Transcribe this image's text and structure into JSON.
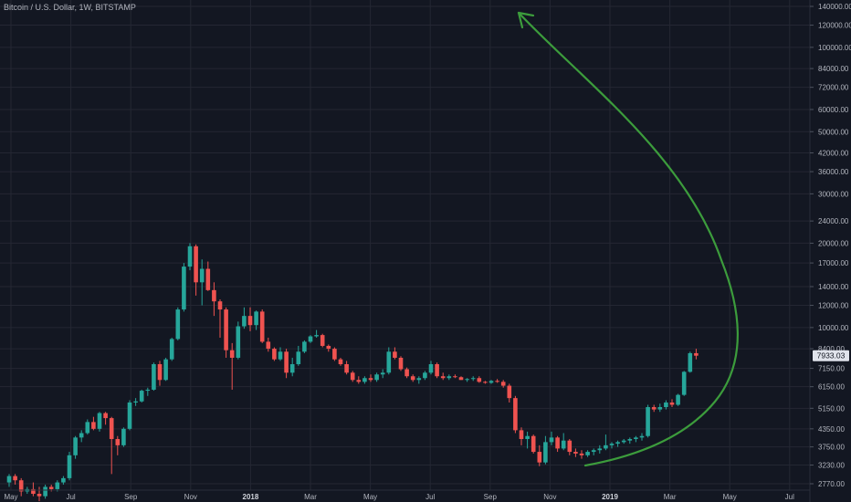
{
  "header": {
    "title": "Bitcoin / U.S. Dollar, 1W, BITSTAMP"
  },
  "colors": {
    "background": "#131722",
    "grid": "#242733",
    "up": "#26a69a",
    "down": "#ef5350",
    "arrow": "#3c9c3c",
    "axis_text": "#b2b5be"
  },
  "chart_data": {
    "type": "candlestick",
    "title": "Bitcoin / U.S. Dollar, 1W, BITSTAMP",
    "scale": "log",
    "ylim": [
      2600,
      150000
    ],
    "y_ticks": [
      "140000.00",
      "120000.00",
      "100000.00",
      "84000.00",
      "72000.00",
      "60000.00",
      "50000.00",
      "42000.00",
      "36000.00",
      "30000.00",
      "24000.00",
      "20000.00",
      "17000.00",
      "14000.00",
      "12000.00",
      "10000.00",
      "8400.00",
      "7150.00",
      "6150.00",
      "5150.00",
      "4350.00",
      "3750.00",
      "3230.00",
      "2770.00"
    ],
    "x_ticks": [
      {
        "label": "May",
        "bold": false
      },
      {
        "label": "Jul",
        "bold": false
      },
      {
        "label": "Sep",
        "bold": false
      },
      {
        "label": "Nov",
        "bold": false
      },
      {
        "label": "2018",
        "bold": true
      },
      {
        "label": "Mar",
        "bold": false
      },
      {
        "label": "May",
        "bold": false
      },
      {
        "label": "Jul",
        "bold": false
      },
      {
        "label": "Sep",
        "bold": false
      },
      {
        "label": "Nov",
        "bold": false
      },
      {
        "label": "2019",
        "bold": true
      },
      {
        "label": "Mar",
        "bold": false
      },
      {
        "label": "May",
        "bold": false
      },
      {
        "label": "Jul",
        "bold": false
      }
    ],
    "last_price": "7933.03",
    "grid": true,
    "candles": [
      [
        2800,
        3000,
        2700,
        2950
      ],
      [
        2950,
        3000,
        2750,
        2850
      ],
      [
        2850,
        2900,
        2500,
        2600
      ],
      [
        2600,
        2700,
        2550,
        2650
      ],
      [
        2650,
        2800,
        2500,
        2550
      ],
      [
        2550,
        2700,
        2400,
        2500
      ],
      [
        2500,
        2750,
        2450,
        2700
      ],
      [
        2700,
        2750,
        2600,
        2650
      ],
      [
        2650,
        2850,
        2600,
        2800
      ],
      [
        2800,
        2950,
        2750,
        2900
      ],
      [
        2900,
        3600,
        2850,
        3500
      ],
      [
        3500,
        4100,
        3400,
        4050
      ],
      [
        4050,
        4300,
        3900,
        4200
      ],
      [
        4200,
        4700,
        4150,
        4600
      ],
      [
        4600,
        4800,
        4300,
        4350
      ],
      [
        4350,
        5000,
        4250,
        4950
      ],
      [
        4950,
        5000,
        4500,
        4750
      ],
      [
        4750,
        4800,
        3000,
        4000
      ],
      [
        4000,
        4100,
        3500,
        3800
      ],
      [
        3800,
        4400,
        3750,
        4350
      ],
      [
        4350,
        5500,
        4300,
        5400
      ],
      [
        5400,
        5600,
        5250,
        5450
      ],
      [
        5450,
        6000,
        5400,
        5950
      ],
      [
        5950,
        6100,
        5700,
        6000
      ],
      [
        6000,
        7500,
        5950,
        7400
      ],
      [
        7400,
        7600,
        6200,
        6500
      ],
      [
        6500,
        7800,
        6450,
        7700
      ],
      [
        7700,
        9200,
        7600,
        9100
      ],
      [
        9100,
        11800,
        9000,
        11600
      ],
      [
        11600,
        17000,
        11400,
        16500
      ],
      [
        16500,
        20000,
        16000,
        19500
      ],
      [
        19500,
        19800,
        13000,
        14500
      ],
      [
        14500,
        17500,
        12000,
        16200
      ],
      [
        16200,
        17200,
        13500,
        13600
      ],
      [
        13600,
        14500,
        11000,
        12400
      ],
      [
        12400,
        12600,
        9200,
        11600
      ],
      [
        11600,
        11800,
        7800,
        8300
      ],
      [
        8300,
        8800,
        6000,
        7800
      ],
      [
        7800,
        10500,
        7700,
        10100
      ],
      [
        10100,
        11800,
        9900,
        11000
      ],
      [
        11000,
        11800,
        9700,
        10200
      ],
      [
        10200,
        11500,
        9800,
        11400
      ],
      [
        11400,
        11600,
        8800,
        8900
      ],
      [
        8900,
        9200,
        8200,
        8400
      ],
      [
        8400,
        8500,
        7600,
        7700
      ],
      [
        7700,
        8500,
        7600,
        8200
      ],
      [
        8200,
        8400,
        6600,
        6900
      ],
      [
        6900,
        7800,
        6700,
        7400
      ],
      [
        7400,
        8600,
        7300,
        8200
      ],
      [
        8200,
        9000,
        8100,
        8900
      ],
      [
        8900,
        9400,
        8800,
        9300
      ],
      [
        9300,
        9800,
        9200,
        9400
      ],
      [
        9400,
        9500,
        8500,
        8600
      ],
      [
        8600,
        8700,
        8200,
        8400
      ],
      [
        8400,
        8500,
        7600,
        7700
      ],
      [
        7700,
        7800,
        7300,
        7400
      ],
      [
        7400,
        7600,
        6800,
        6900
      ],
      [
        6900,
        7000,
        6400,
        6500
      ],
      [
        6500,
        6700,
        6300,
        6400
      ],
      [
        6400,
        6700,
        6300,
        6600
      ],
      [
        6600,
        6800,
        6400,
        6500
      ],
      [
        6500,
        6900,
        6400,
        6800
      ],
      [
        6800,
        7100,
        6600,
        6900
      ],
      [
        6900,
        8500,
        6800,
        8200
      ],
      [
        8200,
        8500,
        7700,
        7800
      ],
      [
        7800,
        7900,
        7000,
        7100
      ],
      [
        7100,
        7200,
        6600,
        6700
      ],
      [
        6700,
        6800,
        6400,
        6500
      ],
      [
        6500,
        6700,
        6300,
        6600
      ],
      [
        6600,
        7000,
        6500,
        6900
      ],
      [
        6900,
        7600,
        6800,
        7400
      ],
      [
        7400,
        7500,
        6600,
        6700
      ],
      [
        6700,
        6900,
        6500,
        6600
      ],
      [
        6600,
        6800,
        6500,
        6700
      ],
      [
        6700,
        6800,
        6600,
        6650
      ],
      [
        6650,
        6700,
        6500,
        6500
      ],
      [
        6500,
        6600,
        6400,
        6550
      ],
      [
        6550,
        6700,
        6450,
        6600
      ],
      [
        6600,
        6700,
        6350,
        6400
      ],
      [
        6400,
        6450,
        6300,
        6350
      ],
      [
        6350,
        6500,
        6300,
        6450
      ],
      [
        6450,
        6550,
        6350,
        6400
      ],
      [
        6400,
        6500,
        6100,
        6200
      ],
      [
        6200,
        6300,
        5400,
        5600
      ],
      [
        5600,
        5700,
        4200,
        4300
      ],
      [
        4300,
        4400,
        3800,
        4000
      ],
      [
        4000,
        4250,
        3700,
        4100
      ],
      [
        4100,
        4150,
        3550,
        3600
      ],
      [
        3600,
        3800,
        3200,
        3300
      ],
      [
        3300,
        4100,
        3250,
        3900
      ],
      [
        3900,
        4250,
        3800,
        4050
      ],
      [
        4050,
        4100,
        3600,
        3700
      ],
      [
        3700,
        4200,
        3650,
        3950
      ],
      [
        3950,
        4000,
        3500,
        3600
      ],
      [
        3600,
        3700,
        3450,
        3550
      ],
      [
        3550,
        3650,
        3400,
        3500
      ],
      [
        3500,
        3650,
        3450,
        3600
      ],
      [
        3600,
        3700,
        3500,
        3650
      ],
      [
        3650,
        3800,
        3550,
        3700
      ],
      [
        3700,
        4150,
        3650,
        3800
      ],
      [
        3800,
        3900,
        3700,
        3850
      ],
      [
        3850,
        3950,
        3750,
        3900
      ],
      [
        3900,
        4000,
        3850,
        3950
      ],
      [
        3950,
        4050,
        3850,
        4000
      ],
      [
        4000,
        4100,
        3900,
        4050
      ],
      [
        4050,
        4200,
        3950,
        4100
      ],
      [
        4100,
        5300,
        4050,
        5200
      ],
      [
        5200,
        5300,
        5000,
        5100
      ],
      [
        5100,
        5350,
        5000,
        5200
      ],
      [
        5200,
        5500,
        5100,
        5400
      ],
      [
        5400,
        5550,
        5200,
        5300
      ],
      [
        5300,
        5800,
        5250,
        5750
      ],
      [
        5750,
        7000,
        5700,
        6950
      ],
      [
        6950,
        8200,
        6900,
        8100
      ],
      [
        8100,
        8400,
        7700,
        7933
      ]
    ]
  }
}
